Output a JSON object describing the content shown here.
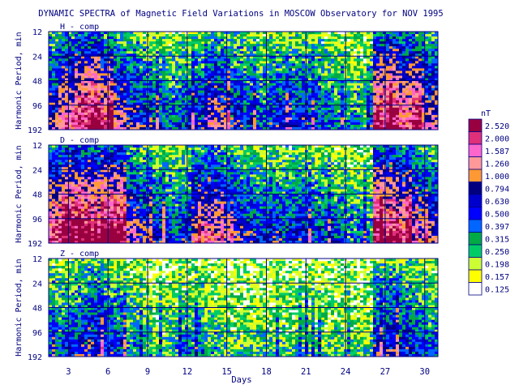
{
  "chart_data": {
    "type": "heatmap",
    "title": "DYNAMIC SPECTRA of Magnetic Field Variations in MOSCOW Observatory for NOV 1995",
    "xlabel": "Days",
    "ylabel": "Harmonic Period, min",
    "x_ticks": [
      "3",
      "6",
      "9",
      "12",
      "15",
      "18",
      "21",
      "24",
      "27",
      "30"
    ],
    "x_tick_values": [
      3,
      6,
      9,
      12,
      15,
      18,
      21,
      24,
      27,
      30
    ],
    "xlim": [
      1.5,
      31
    ],
    "y_ticks": [
      "12",
      "24",
      "48",
      "96",
      "192"
    ],
    "y_tick_values": [
      12,
      24,
      48,
      96,
      192
    ],
    "ylim": [
      12,
      192
    ],
    "y_scale": "log",
    "grid": true,
    "panels": [
      {
        "label": "H - comp",
        "activity": [
          0.55,
          0.7,
          0.85,
          0.9,
          0.75,
          0.6,
          0.5,
          0.45,
          0.4,
          0.35,
          0.4,
          0.45,
          0.6,
          0.55,
          0.45,
          0.4,
          0.35,
          0.45,
          0.4,
          0.45,
          0.4,
          0.35,
          0.3,
          0.3,
          0.25,
          0.85,
          0.9,
          0.75,
          0.7,
          0.6
        ]
      },
      {
        "label": "D - comp",
        "activity": [
          0.8,
          0.95,
          0.9,
          0.85,
          0.95,
          0.9,
          0.6,
          0.5,
          0.45,
          0.4,
          0.45,
          0.65,
          0.7,
          0.6,
          0.5,
          0.45,
          0.4,
          0.45,
          0.4,
          0.45,
          0.4,
          0.4,
          0.35,
          0.3,
          0.3,
          0.9,
          0.85,
          0.75,
          0.6,
          0.55
        ]
      },
      {
        "label": "Z - comp",
        "activity": [
          0.35,
          0.4,
          0.45,
          0.5,
          0.45,
          0.4,
          0.3,
          0.25,
          0.2,
          0.25,
          0.3,
          0.3,
          0.25,
          0.22,
          0.2,
          0.2,
          0.2,
          0.2,
          0.2,
          0.2,
          0.2,
          0.2,
          0.2,
          0.2,
          0.2,
          0.45,
          0.5,
          0.45,
          0.4,
          0.35
        ]
      }
    ],
    "legend": {
      "unit": "nT",
      "placement": "right",
      "levels": [
        "2.520",
        "2.000",
        "1.587",
        "1.260",
        "1.000",
        "0.794",
        "0.630",
        "0.500",
        "0.397",
        "0.315",
        "0.250",
        "0.198",
        "0.157",
        "0.125"
      ],
      "colors": [
        "#99003f",
        "#e0307a",
        "#ff66cc",
        "#ff9999",
        "#ff9933",
        "#000080",
        "#0000cd",
        "#0000ff",
        "#0066ff",
        "#00aa44",
        "#00cc66",
        "#ccff33",
        "#ffff00",
        "#ffffff"
      ]
    }
  }
}
